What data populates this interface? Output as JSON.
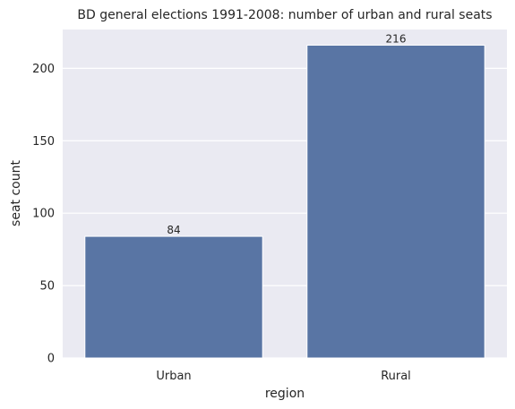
{
  "chart_data": {
    "type": "bar",
    "title": "BD general elections 1991-2008: number of urban and rural seats",
    "xlabel": "region",
    "ylabel": "seat count",
    "categories": [
      "Urban",
      "Rural"
    ],
    "values": [
      84,
      216
    ],
    "data_labels": [
      "84",
      "216"
    ],
    "ylim": [
      0,
      226.8
    ],
    "yticks": [
      0,
      50,
      100,
      150,
      200
    ],
    "grid": true,
    "legend": "none",
    "colors": {
      "bar": "#5975a4",
      "plot_background": "#eaeaf2",
      "grid": "#ffffff"
    }
  }
}
